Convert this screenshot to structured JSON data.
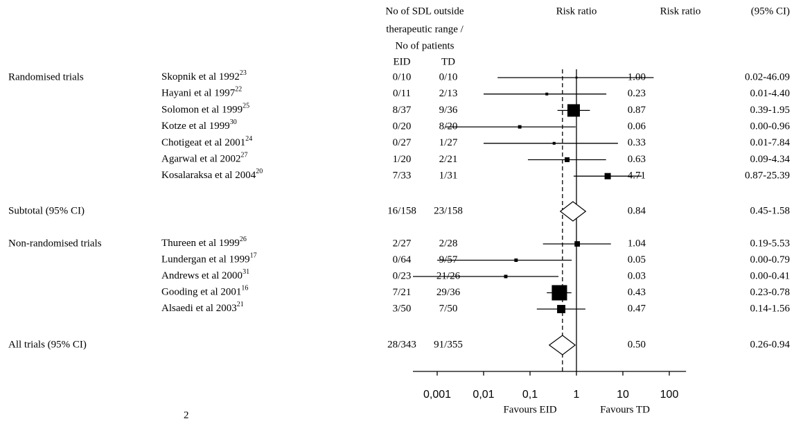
{
  "chart_data": {
    "type": "forest",
    "header": {
      "events_lines": [
        "No of SDL outside",
        "therapeutic range /",
        "No of patients"
      ],
      "eid": "EID",
      "td": "TD",
      "plot_title": "Risk ratio",
      "rr_title": "Risk ratio",
      "ci_title": "(95% CI)"
    },
    "favours_left": "Favours EID",
    "favours_right": "Favours TD",
    "xscale": "log",
    "xlim": [
      0.0003,
      230
    ],
    "xticks": [
      {
        "value": 0.001,
        "label": "0,001"
      },
      {
        "value": 0.01,
        "label": "0,01"
      },
      {
        "value": 0.1,
        "label": "0,1"
      },
      1,
      10,
      100
    ],
    "reference_line": 1,
    "marker_color": "#000000",
    "groups": [
      {
        "label": "Randomised trials",
        "studies": [
          {
            "name": "Skopnik et al 1992",
            "sup": "23",
            "eid": "0/10",
            "td": "0/10",
            "rr": {
              "value": 1.0,
              "label": "1.00"
            },
            "ci": {
              "low": 0.02,
              "high": 46.09,
              "label": "0.02-46.09"
            },
            "weight": 0.4
          },
          {
            "name": "Hayani et al 1997",
            "sup": "22",
            "eid": "0/11",
            "td": "2/13",
            "rr": {
              "value": 0.23,
              "label": "0.23"
            },
            "ci": {
              "low": 0.01,
              "high": 4.4,
              "label": "0.01-4.40"
            },
            "weight": 0.8
          },
          {
            "name": "Solomon et al 1999",
            "sup": "25",
            "eid": "8/37",
            "td": "9/36",
            "rr": {
              "value": 0.87,
              "label": "0.87"
            },
            "ci": {
              "low": 0.39,
              "high": 1.95,
              "label": "0.39-1.95"
            },
            "weight": 16
          },
          {
            "name": "Kotze et al 1999",
            "sup": "30",
            "eid": "0/20",
            "td": "8/20",
            "rr": {
              "value": 0.06,
              "label": "0.06"
            },
            "ci": {
              "low": 0.0015,
              "high": 0.96,
              "label": "0.00-0.96"
            },
            "weight": 1.2
          },
          {
            "name": "Chotigeat et al 2001",
            "sup": "24",
            "eid": "0/27",
            "td": "1/27",
            "rr": {
              "value": 0.33,
              "label": "0.33"
            },
            "ci": {
              "low": 0.01,
              "high": 7.84,
              "label": "0.01-7.84"
            },
            "weight": 0.8
          },
          {
            "name": "Agarwal et al 2002",
            "sup": "27",
            "eid": "1/20",
            "td": "2/21",
            "rr": {
              "value": 0.63,
              "label": "0.63"
            },
            "ci": {
              "low": 0.09,
              "high": 4.34,
              "label": "0.09-4.34"
            },
            "weight": 2.4
          },
          {
            "name": "Kosalaraksa et al 2004",
            "sup": "20",
            "eid": "7/33",
            "td": "1/31",
            "rr": {
              "value": 4.71,
              "label": "4.71"
            },
            "ci": {
              "low": 0.87,
              "high": 25.39,
              "label": "0.87-25.39"
            },
            "weight": 4
          }
        ],
        "subtotal": {
          "label": "Subtotal (95% CI)",
          "eid": "16/158",
          "td": "23/158",
          "rr": {
            "value": 0.84,
            "label": "0.84"
          },
          "ci": {
            "low": 0.45,
            "high": 1.58,
            "label": "0.45-1.58"
          }
        }
      },
      {
        "label": "Non-randomised trials",
        "studies": [
          {
            "name": "Thureen et al 1999",
            "sup": "26",
            "eid": "2/27",
            "td": "2/28",
            "rr": {
              "value": 1.04,
              "label": "1.04"
            },
            "ci": {
              "low": 0.19,
              "high": 5.53,
              "label": "0.19-5.53"
            },
            "weight": 3
          },
          {
            "name": "Lundergan et al 1999",
            "sup": "17",
            "eid": "0/64",
            "td": "9/57",
            "rr": {
              "value": 0.05,
              "label": "0.05"
            },
            "ci": {
              "low": 0.001,
              "high": 0.79,
              "label": "0.00-0.79"
            },
            "weight": 1.2
          },
          {
            "name": "Andrews et al 2000",
            "sup": "31",
            "eid": "0/23",
            "td": "21/26",
            "rr": {
              "value": 0.03,
              "label": "0.03"
            },
            "ci": {
              "low": 0.0003,
              "high": 0.41,
              "label": "0.00-0.41"
            },
            "weight": 1.2
          },
          {
            "name": "Gooding et al 2001",
            "sup": "16",
            "eid": "7/21",
            "td": "29/36",
            "rr": {
              "value": 0.43,
              "label": "0.43"
            },
            "ci": {
              "low": 0.23,
              "high": 0.78,
              "label": "0.23-0.78"
            },
            "weight": 24
          },
          {
            "name": "Alsaedi et al 2003",
            "sup": "21",
            "eid": "3/50",
            "td": "7/50",
            "rr": {
              "value": 0.47,
              "label": "0.47"
            },
            "ci": {
              "low": 0.14,
              "high": 1.56,
              "label": "0.14-1.56"
            },
            "weight": 7
          }
        ]
      }
    ],
    "overall": {
      "label": "All trials (95% CI)",
      "eid": "28/343",
      "td": "91/355",
      "rr": {
        "value": 0.5,
        "label": "0.50"
      },
      "ci": {
        "low": 0.26,
        "high": 0.94,
        "label": "0.26-0.94"
      }
    },
    "clipped_text": "2"
  }
}
